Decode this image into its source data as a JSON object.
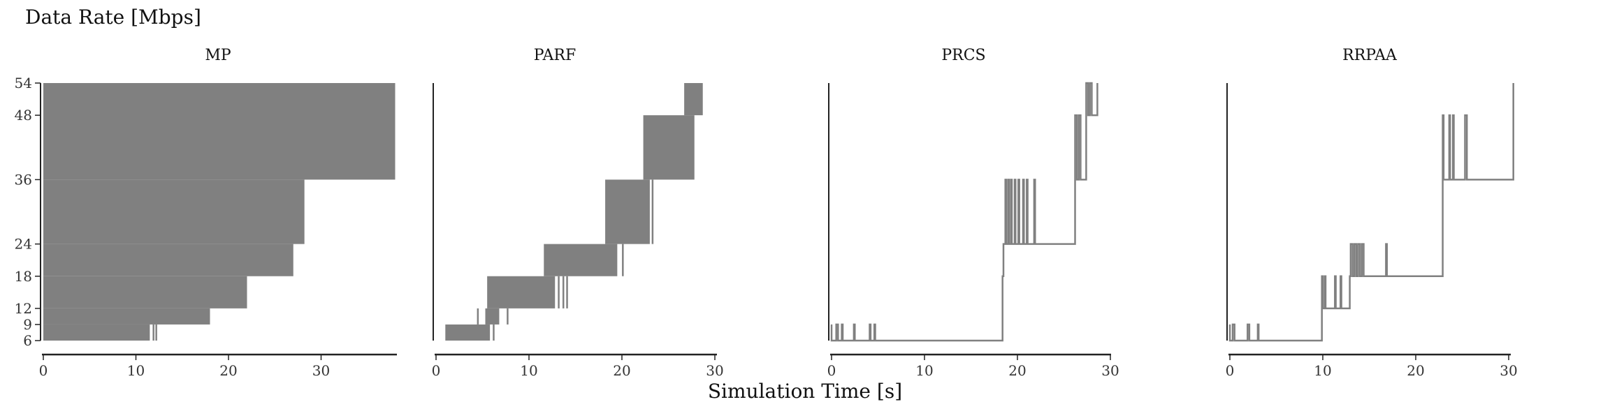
{
  "figure": {
    "ylabel": "Data Rate [Mbps]",
    "xlabel": "Simulation Time [s]"
  },
  "chart_data": [
    {
      "type": "line",
      "title": "MP",
      "ylim": [
        6,
        54
      ],
      "xlim": [
        0,
        38
      ],
      "xticks": [
        0,
        10,
        20,
        30
      ],
      "yticks": [
        6,
        9,
        12,
        18,
        24,
        36,
        48,
        54
      ],
      "color": "#808080",
      "show_y_ticks": true,
      "regions": [
        {
          "x0": 0,
          "x1": 38,
          "y0": 36,
          "y1": 54
        },
        {
          "x0": 0,
          "x1": 28.2,
          "y0": 24,
          "y1": 36
        },
        {
          "x0": 0,
          "x1": 27,
          "y0": 18,
          "y1": 24
        },
        {
          "x0": 0,
          "x1": 22,
          "y0": 12,
          "y1": 18
        },
        {
          "x0": 0,
          "x1": 18,
          "y0": 9,
          "y1": 12
        },
        {
          "x0": 0,
          "x1": 11.5,
          "y0": 6,
          "y1": 9
        }
      ],
      "spikes": [
        {
          "x": 11.9,
          "y0": 6,
          "y1": 9
        },
        {
          "x": 12.2,
          "y0": 6,
          "y1": 9
        }
      ]
    },
    {
      "type": "line",
      "title": "PARF",
      "ylim": [
        6,
        54
      ],
      "xlim": [
        0,
        30
      ],
      "xticks": [
        0,
        10,
        20,
        30
      ],
      "yticks": [
        6,
        9,
        12,
        18,
        24,
        36,
        48,
        54
      ],
      "color": "#808080",
      "show_y_ticks": false,
      "regions": [
        {
          "x0": 1,
          "x1": 5.8,
          "y0": 6,
          "y1": 9
        },
        {
          "x0": 5.3,
          "x1": 6.8,
          "y0": 9,
          "y1": 12
        },
        {
          "x0": 5.5,
          "x1": 12.8,
          "y0": 12,
          "y1": 18
        },
        {
          "x0": 11.6,
          "x1": 19.5,
          "y0": 18,
          "y1": 24
        },
        {
          "x0": 18.2,
          "x1": 23,
          "y0": 24,
          "y1": 36
        },
        {
          "x0": 22.3,
          "x1": 27.8,
          "y0": 36,
          "y1": 48
        },
        {
          "x0": 26.7,
          "x1": 28.7,
          "y0": 48,
          "y1": 54
        }
      ],
      "spikes": [
        {
          "x": 4.5,
          "y0": 9,
          "y1": 12
        },
        {
          "x": 6.2,
          "y0": 6,
          "y1": 9
        },
        {
          "x": 7.7,
          "y0": 9,
          "y1": 12
        },
        {
          "x": 13.2,
          "y0": 12,
          "y1": 18
        },
        {
          "x": 13.7,
          "y0": 12,
          "y1": 18
        },
        {
          "x": 14.1,
          "y0": 12,
          "y1": 18
        },
        {
          "x": 20.1,
          "y0": 18,
          "y1": 24
        },
        {
          "x": 23.3,
          "y0": 24,
          "y1": 36
        }
      ]
    },
    {
      "type": "line",
      "title": "PRCS",
      "ylim": [
        6,
        54
      ],
      "xlim": [
        0,
        30
      ],
      "xticks": [
        0,
        10,
        20,
        30
      ],
      "yticks": [
        6,
        9,
        12,
        18,
        24,
        36,
        48,
        54
      ],
      "color": "#808080",
      "show_y_ticks": false,
      "points": [
        [
          0,
          9
        ],
        [
          0,
          6
        ],
        [
          0.5,
          6
        ],
        [
          0.5,
          9
        ],
        [
          0.7,
          9
        ],
        [
          0.7,
          6
        ],
        [
          1.1,
          6
        ],
        [
          1.1,
          9
        ],
        [
          1.2,
          9
        ],
        [
          1.2,
          6
        ],
        [
          2.4,
          6
        ],
        [
          2.4,
          9
        ],
        [
          2.5,
          9
        ],
        [
          2.5,
          6
        ],
        [
          4.1,
          6
        ],
        [
          4.1,
          9
        ],
        [
          4.2,
          9
        ],
        [
          4.2,
          6
        ],
        [
          4.6,
          6
        ],
        [
          4.6,
          9
        ],
        [
          4.7,
          9
        ],
        [
          4.7,
          6
        ],
        [
          18.4,
          6
        ],
        [
          18.4,
          18
        ],
        [
          18.5,
          18
        ],
        [
          18.5,
          24
        ],
        [
          18.7,
          24
        ],
        [
          18.7,
          36
        ],
        [
          18.8,
          36
        ],
        [
          18.8,
          24
        ],
        [
          19.0,
          24
        ],
        [
          19.0,
          36
        ],
        [
          19.1,
          36
        ],
        [
          19.1,
          24
        ],
        [
          19.3,
          24
        ],
        [
          19.3,
          36
        ],
        [
          19.4,
          36
        ],
        [
          19.4,
          24
        ],
        [
          19.7,
          24
        ],
        [
          19.7,
          36
        ],
        [
          19.8,
          36
        ],
        [
          19.8,
          24
        ],
        [
          20.1,
          24
        ],
        [
          20.1,
          36
        ],
        [
          20.2,
          36
        ],
        [
          20.2,
          24
        ],
        [
          20.6,
          24
        ],
        [
          20.6,
          36
        ],
        [
          20.7,
          36
        ],
        [
          20.7,
          24
        ],
        [
          21.0,
          24
        ],
        [
          21.0,
          36
        ],
        [
          21.1,
          36
        ],
        [
          21.1,
          24
        ],
        [
          21.8,
          24
        ],
        [
          21.8,
          36
        ],
        [
          21.9,
          36
        ],
        [
          21.9,
          24
        ],
        [
          26.2,
          24
        ],
        [
          26.2,
          48
        ],
        [
          26.4,
          48
        ],
        [
          26.4,
          36
        ],
        [
          26.6,
          36
        ],
        [
          26.6,
          48
        ],
        [
          26.8,
          48
        ],
        [
          26.8,
          36
        ],
        [
          27.4,
          36
        ],
        [
          27.4,
          54
        ],
        [
          27.6,
          54
        ],
        [
          27.6,
          48
        ],
        [
          27.8,
          48
        ],
        [
          27.8,
          54
        ],
        [
          28.0,
          54
        ],
        [
          28.0,
          48
        ],
        [
          28.6,
          48
        ],
        [
          28.6,
          54
        ]
      ]
    },
    {
      "type": "line",
      "title": "RRPAA",
      "ylim": [
        6,
        54
      ],
      "xlim": [
        0,
        30
      ],
      "xticks": [
        0,
        10,
        20,
        30
      ],
      "yticks": [
        6,
        9,
        12,
        18,
        24,
        36,
        48,
        54
      ],
      "color": "#808080",
      "show_y_ticks": false,
      "points": [
        [
          0,
          9
        ],
        [
          0,
          6
        ],
        [
          0.3,
          6
        ],
        [
          0.3,
          9
        ],
        [
          0.5,
          9
        ],
        [
          0.5,
          6
        ],
        [
          1.9,
          6
        ],
        [
          1.9,
          9
        ],
        [
          2.1,
          9
        ],
        [
          2.1,
          6
        ],
        [
          3.0,
          6
        ],
        [
          3.0,
          9
        ],
        [
          3.1,
          9
        ],
        [
          3.1,
          6
        ],
        [
          9.9,
          6
        ],
        [
          9.9,
          18
        ],
        [
          10.0,
          18
        ],
        [
          10.0,
          12
        ],
        [
          10.2,
          12
        ],
        [
          10.2,
          18
        ],
        [
          10.3,
          18
        ],
        [
          10.3,
          12
        ],
        [
          11.3,
          12
        ],
        [
          11.3,
          18
        ],
        [
          11.4,
          18
        ],
        [
          11.4,
          12
        ],
        [
          11.9,
          12
        ],
        [
          11.9,
          18
        ],
        [
          12.0,
          18
        ],
        [
          12.0,
          12
        ],
        [
          12.9,
          12
        ],
        [
          12.9,
          18
        ],
        [
          13.0,
          18
        ],
        [
          13.0,
          24
        ],
        [
          13.2,
          24
        ],
        [
          13.2,
          18
        ],
        [
          13.4,
          18
        ],
        [
          13.4,
          24
        ],
        [
          13.6,
          24
        ],
        [
          13.6,
          18
        ],
        [
          13.8,
          18
        ],
        [
          13.8,
          24
        ],
        [
          14.0,
          24
        ],
        [
          14.0,
          18
        ],
        [
          14.2,
          18
        ],
        [
          14.2,
          24
        ],
        [
          14.4,
          24
        ],
        [
          14.4,
          18
        ],
        [
          16.8,
          18
        ],
        [
          16.8,
          24
        ],
        [
          16.9,
          24
        ],
        [
          16.9,
          18
        ],
        [
          22.9,
          18
        ],
        [
          22.9,
          48
        ],
        [
          23.0,
          48
        ],
        [
          23.0,
          36
        ],
        [
          23.6,
          36
        ],
        [
          23.6,
          48
        ],
        [
          23.7,
          48
        ],
        [
          23.7,
          36
        ],
        [
          24.0,
          36
        ],
        [
          24.0,
          48
        ],
        [
          24.1,
          48
        ],
        [
          24.1,
          36
        ],
        [
          25.3,
          36
        ],
        [
          25.3,
          48
        ],
        [
          25.5,
          48
        ],
        [
          25.5,
          36
        ],
        [
          30.5,
          36
        ],
        [
          30.5,
          54
        ]
      ]
    }
  ]
}
